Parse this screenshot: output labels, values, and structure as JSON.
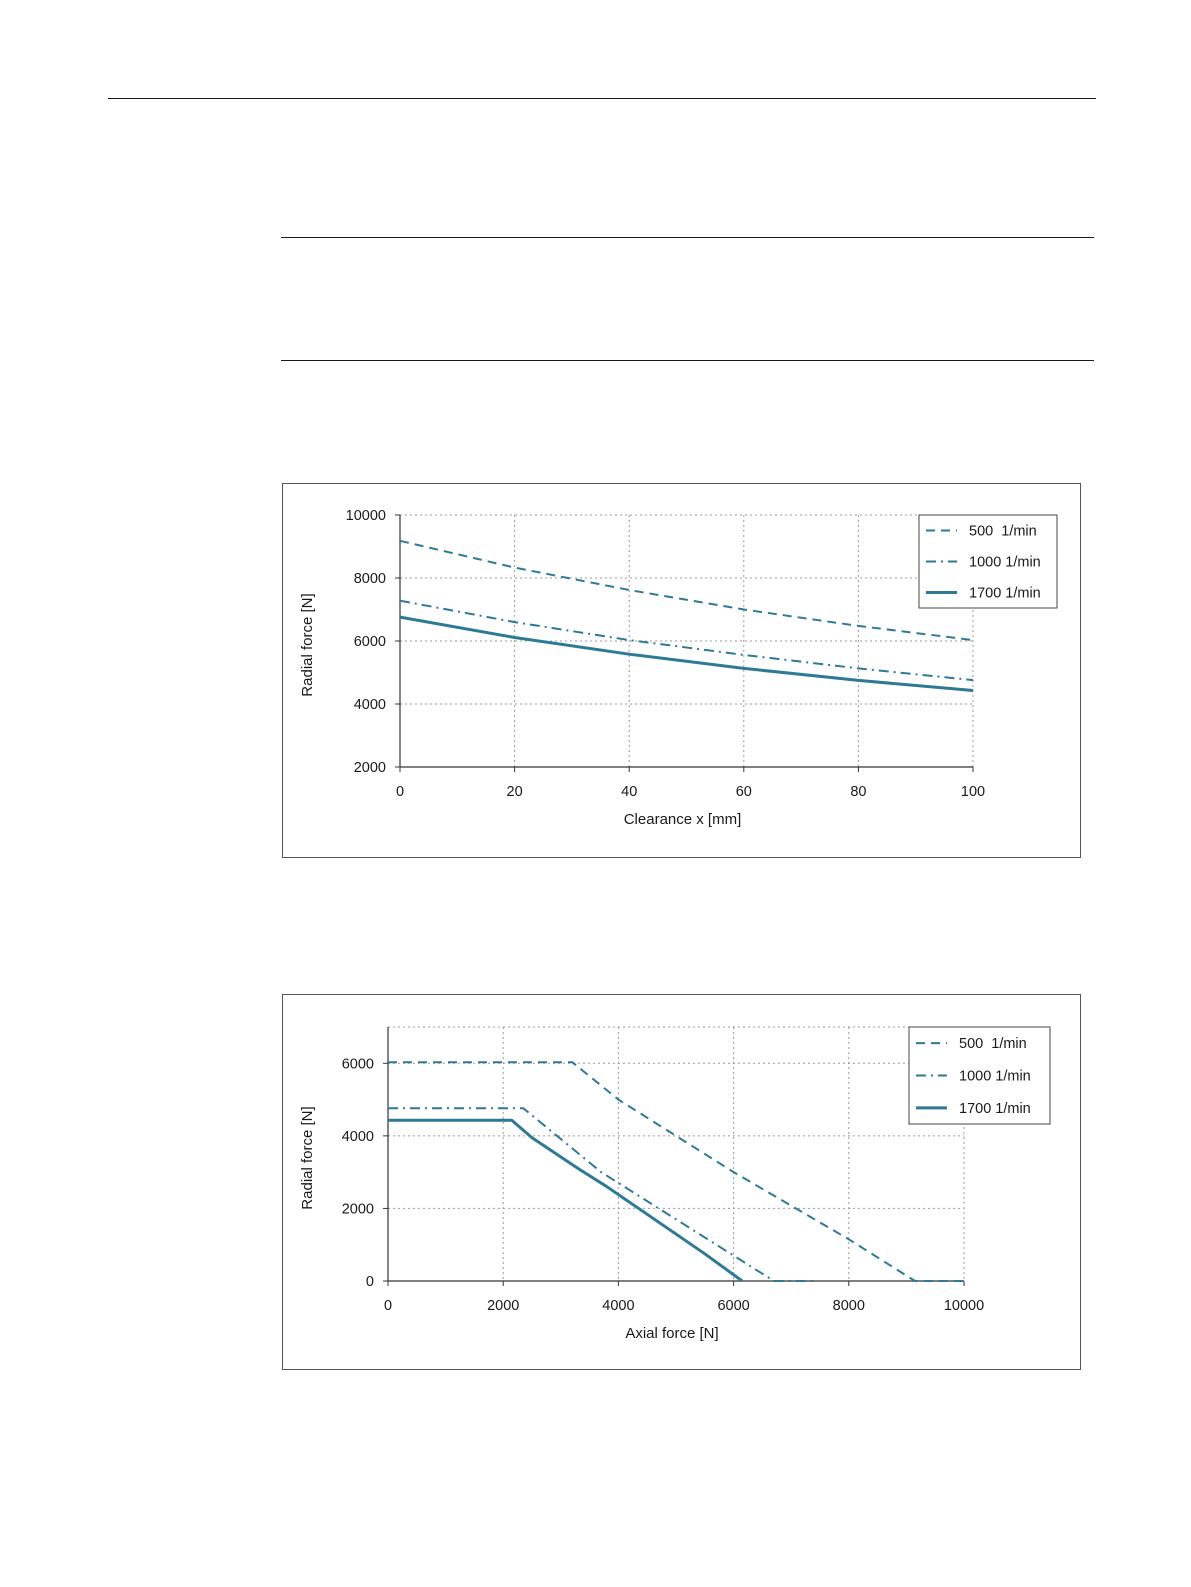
{
  "colors": {
    "series": "#2e7a95",
    "grid": "#9a9a9a",
    "axis": "#333333"
  },
  "chart_data": [
    {
      "type": "line",
      "title": "",
      "xlabel": "Clearance x [mm]",
      "ylabel": "Radial force [N]",
      "xlim": [
        0,
        100
      ],
      "ylim": [
        2000,
        10000
      ],
      "xticks": [
        0,
        20,
        40,
        60,
        80,
        100
      ],
      "yticks": [
        2000,
        4000,
        6000,
        8000,
        10000
      ],
      "grid": true,
      "legend": "top-right",
      "series": [
        {
          "name": "500  1/min",
          "style": "dashed",
          "x": [
            0,
            20,
            40,
            60,
            80,
            100
          ],
          "y": [
            9180,
            8330,
            7620,
            7000,
            6480,
            6030
          ]
        },
        {
          "name": "1000 1/min",
          "style": "dashdot",
          "x": [
            0,
            20,
            40,
            60,
            80,
            100
          ],
          "y": [
            7280,
            6600,
            6030,
            5560,
            5130,
            4760
          ]
        },
        {
          "name": "1700 1/min",
          "style": "solid",
          "x": [
            0,
            20,
            40,
            60,
            80,
            100
          ],
          "y": [
            6760,
            6110,
            5580,
            5130,
            4750,
            4430
          ]
        }
      ]
    },
    {
      "type": "line",
      "title": "",
      "xlabel": "Axial force [N]",
      "ylabel": "Radial force [N]",
      "xlim": [
        0,
        10000
      ],
      "ylim": [
        0,
        7000
      ],
      "xticks": [
        0,
        2000,
        4000,
        6000,
        8000,
        10000
      ],
      "yticks": [
        0,
        2000,
        4000,
        6000
      ],
      "grid": true,
      "legend": "top-right",
      "series": [
        {
          "name": "500  1/min",
          "style": "dashed",
          "x": [
            0,
            3200,
            4000,
            6000,
            8000,
            9150,
            10000
          ],
          "y": [
            6030,
            6030,
            5000,
            3000,
            1150,
            0,
            0
          ]
        },
        {
          "name": "1000 1/min",
          "style": "dashdot",
          "x": [
            0,
            2350,
            3700,
            5600,
            6700,
            7400
          ],
          "y": [
            4760,
            4760,
            3000,
            1100,
            0,
            0
          ]
        },
        {
          "name": "1700 1/min",
          "style": "solid",
          "x": [
            0,
            2150,
            2500,
            3300,
            3800,
            5500,
            6150
          ],
          "y": [
            4430,
            4430,
            3950,
            3100,
            2600,
            750,
            0
          ]
        }
      ]
    }
  ]
}
